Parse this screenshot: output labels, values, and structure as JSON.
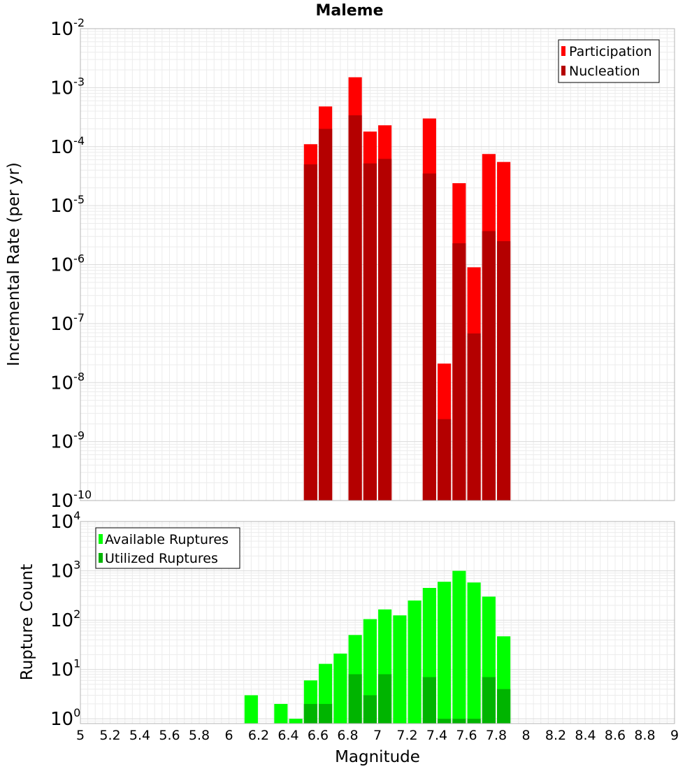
{
  "chart_data": [
    {
      "type": "bar",
      "title": "Maleme",
      "xlabel": "",
      "ylabel": "Incremental Rate (per yr)",
      "xlim": [
        5,
        9
      ],
      "yscale": "log",
      "ylim": [
        1e-10,
        0.01
      ],
      "y_tick_exponents": [
        -10,
        -9,
        -8,
        -7,
        -6,
        -5,
        -4,
        -3,
        -2
      ],
      "grid": true,
      "legend_position": "top-right",
      "bar_width": 0.09,
      "series": [
        {
          "name": "Participation",
          "color": "#ff0000",
          "x": [
            6.55,
            6.65,
            6.85,
            6.95,
            7.05,
            7.35,
            7.45,
            7.55,
            7.65,
            7.75,
            7.85
          ],
          "values": [
            0.00011,
            0.00048,
            0.0015,
            0.00018,
            0.00023,
            0.0003,
            2.1e-08,
            2.4e-05,
            9e-07,
            7.5e-05,
            5.5e-05
          ]
        },
        {
          "name": "Nucleation",
          "color": "#b40000",
          "x": [
            6.55,
            6.65,
            6.85,
            6.95,
            7.05,
            7.35,
            7.45,
            7.55,
            7.65,
            7.75,
            7.85
          ],
          "values": [
            5e-05,
            0.0002,
            0.00034,
            5.2e-05,
            6.2e-05,
            3.5e-05,
            2.4e-09,
            2.3e-06,
            6.8e-08,
            3.7e-06,
            2.5e-06
          ]
        }
      ]
    },
    {
      "type": "bar",
      "title": "",
      "xlabel": "Magnitude",
      "ylabel": "Rupture Count",
      "xlim": [
        5,
        9
      ],
      "x_ticks": [
        "5",
        "5.2",
        "5.4",
        "5.6",
        "5.8",
        "6",
        "6.2",
        "6.4",
        "6.6",
        "6.8",
        "7",
        "7.2",
        "7.4",
        "7.6",
        "7.8",
        "8",
        "8.2",
        "8.4",
        "8.6",
        "8.8",
        "9"
      ],
      "yscale": "log",
      "ylim": [
        0.8,
        10000.0
      ],
      "y_tick_exponents": [
        0,
        1,
        2,
        3,
        4
      ],
      "grid": true,
      "legend_position": "top-left",
      "bar_width": 0.09,
      "series": [
        {
          "name": "Available Ruptures",
          "color": "#00ff00",
          "x": [
            6.15,
            6.35,
            6.45,
            6.55,
            6.65,
            6.75,
            6.85,
            6.95,
            7.05,
            7.15,
            7.25,
            7.35,
            7.45,
            7.55,
            7.65,
            7.75,
            7.85
          ],
          "values": [
            3,
            2,
            1,
            6,
            13,
            21,
            50,
            105,
            165,
            125,
            250,
            450,
            600,
            1000,
            580,
            300,
            47
          ]
        },
        {
          "name": "Utilized Ruptures",
          "color": "#00b400",
          "x": [
            6.55,
            6.65,
            6.85,
            6.95,
            7.05,
            7.35,
            7.45,
            7.55,
            7.65,
            7.75,
            7.85
          ],
          "values": [
            2,
            2,
            8,
            3,
            8,
            7,
            1,
            1,
            1,
            7,
            4
          ]
        }
      ]
    }
  ]
}
